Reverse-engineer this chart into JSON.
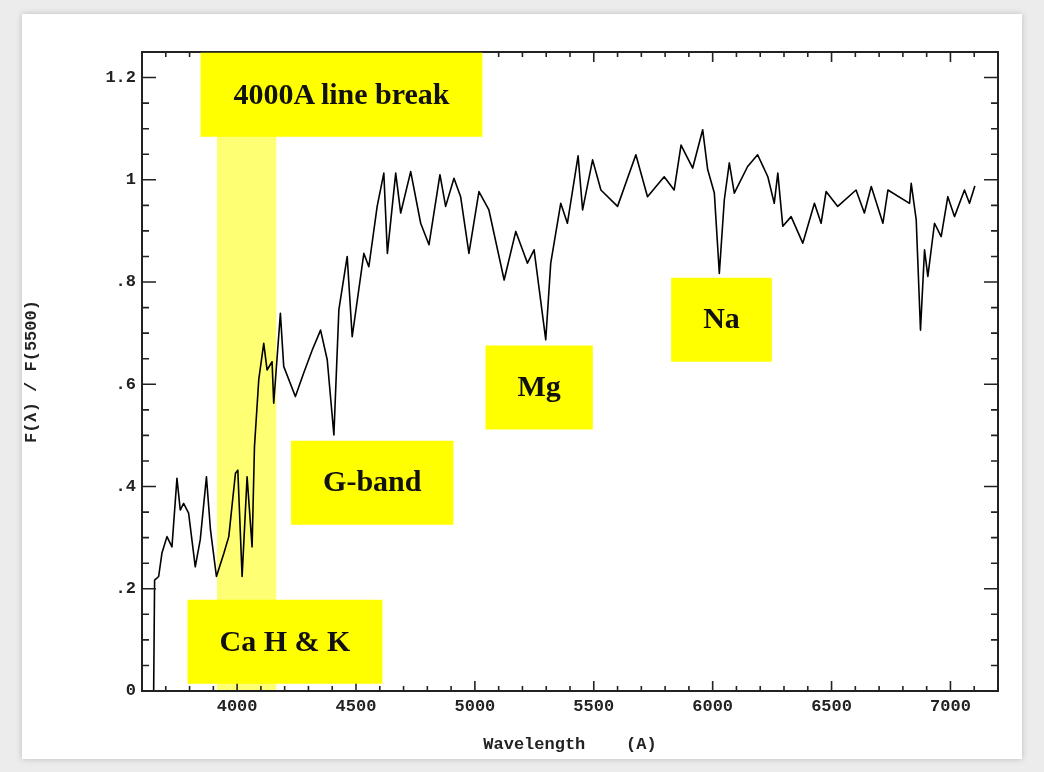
{
  "chart_data": {
    "type": "line",
    "xlabel": "Wavelength    (A)",
    "ylabel": "F(λ) / F(5500)",
    "color": "#000000",
    "legend": false,
    "grid": false,
    "marker": "none",
    "line_style": "solid",
    "xlim": [
      3600,
      7200
    ],
    "ylim": [
      0,
      1.25
    ],
    "xticks": [
      {
        "value": 3600,
        "label": null
      },
      {
        "value": 3700,
        "label": null
      },
      {
        "value": 3800,
        "label": null
      },
      {
        "value": 3900,
        "label": null
      },
      4000,
      {
        "value": 4100,
        "label": null
      },
      {
        "value": 4200,
        "label": null
      },
      {
        "value": 4300,
        "label": null
      },
      {
        "value": 4400,
        "label": null
      },
      4500,
      {
        "value": 4600,
        "label": null
      },
      {
        "value": 4700,
        "label": null
      },
      {
        "value": 4800,
        "label": null
      },
      {
        "value": 4900,
        "label": null
      },
      5000,
      {
        "value": 5100,
        "label": null
      },
      {
        "value": 5200,
        "label": null
      },
      {
        "value": 5300,
        "label": null
      },
      {
        "value": 5400,
        "label": null
      },
      5500,
      {
        "value": 5600,
        "label": null
      },
      {
        "value": 5700,
        "label": null
      },
      {
        "value": 5800,
        "label": null
      },
      {
        "value": 5900,
        "label": null
      },
      6000,
      {
        "value": 6100,
        "label": null
      },
      {
        "value": 6200,
        "label": null
      },
      {
        "value": 6300,
        "label": null
      },
      {
        "value": 6400,
        "label": null
      },
      6500,
      {
        "value": 6600,
        "label": null
      },
      {
        "value": 6700,
        "label": null
      },
      {
        "value": 6800,
        "label": null
      },
      {
        "value": 6900,
        "label": null
      },
      7000,
      {
        "value": 7100,
        "label": null
      }
    ],
    "yticks": [
      0,
      {
        "value": 0.05,
        "label": null
      },
      {
        "value": 0.1,
        "label": null
      },
      {
        "value": 0.15,
        "label": null
      },
      {
        "value": 0.2,
        "label": ".2"
      },
      {
        "value": 0.25,
        "label": null
      },
      {
        "value": 0.3,
        "label": null
      },
      {
        "value": 0.35,
        "label": null
      },
      {
        "value": 0.4,
        "label": ".4"
      },
      {
        "value": 0.45,
        "label": null
      },
      {
        "value": 0.5,
        "label": null
      },
      {
        "value": 0.55,
        "label": null
      },
      {
        "value": 0.6,
        "label": ".6"
      },
      {
        "value": 0.65,
        "label": null
      },
      {
        "value": 0.7,
        "label": null
      },
      {
        "value": 0.75,
        "label": null
      },
      {
        "value": 0.8,
        "label": ".8"
      },
      {
        "value": 0.85,
        "label": null
      },
      {
        "value": 0.9,
        "label": null
      },
      {
        "value": 0.95,
        "label": null
      },
      1,
      {
        "value": 1.05,
        "label": null
      },
      {
        "value": 1.1,
        "label": null
      },
      {
        "value": 1.15,
        "label": null
      },
      1.2
    ],
    "x": [
      3649,
      3653,
      3670,
      3684,
      3705,
      3726,
      3747,
      3761,
      3775,
      3796,
      3824,
      3845,
      3871,
      3888,
      3913,
      3944,
      3965,
      3993,
      4003,
      4021,
      4042,
      4063,
      4073,
      4091,
      4112,
      4126,
      4147,
      4154,
      4182,
      4196,
      4245,
      4280,
      4316,
      4351,
      4379,
      4407,
      4428,
      4463,
      4484,
      4533,
      4554,
      4589,
      4617,
      4632,
      4667,
      4688,
      4730,
      4772,
      4807,
      4853,
      4877,
      4912,
      4940,
      4975,
      5017,
      5059,
      5123,
      5172,
      5221,
      5249,
      5298,
      5319,
      5361,
      5389,
      5434,
      5453,
      5495,
      5530,
      5600,
      5677,
      5726,
      5796,
      5838,
      5867,
      5916,
      5958,
      5979,
      6007,
      6028,
      6049,
      6070,
      6091,
      6147,
      6189,
      6232,
      6259,
      6274,
      6295,
      6330,
      6379,
      6428,
      6456,
      6477,
      6526,
      6603,
      6638,
      6667,
      6716,
      6737,
      6828,
      6835,
      6856,
      6874,
      6891,
      6905,
      6933,
      6961,
      6989,
      7017,
      7059,
      7080,
      7102
    ],
    "values": [
      0.0,
      0.217,
      0.224,
      0.27,
      0.302,
      0.282,
      0.416,
      0.354,
      0.367,
      0.348,
      0.243,
      0.296,
      0.419,
      0.315,
      0.224,
      0.269,
      0.302,
      0.426,
      0.432,
      0.224,
      0.419,
      0.282,
      0.478,
      0.609,
      0.68,
      0.628,
      0.644,
      0.563,
      0.739,
      0.635,
      0.576,
      0.622,
      0.667,
      0.706,
      0.648,
      0.501,
      0.746,
      0.85,
      0.693,
      0.856,
      0.83,
      0.948,
      1.013,
      0.856,
      1.013,
      0.935,
      1.016,
      0.915,
      0.873,
      1.01,
      0.948,
      1.003,
      0.967,
      0.856,
      0.977,
      0.941,
      0.804,
      0.899,
      0.837,
      0.863,
      0.687,
      0.837,
      0.954,
      0.915,
      1.047,
      0.941,
      1.039,
      0.98,
      0.948,
      1.049,
      0.967,
      1.006,
      0.98,
      1.068,
      1.023,
      1.098,
      1.02,
      0.974,
      0.817,
      0.961,
      1.033,
      0.974,
      1.026,
      1.049,
      1.006,
      0.954,
      1.013,
      0.909,
      0.928,
      0.876,
      0.954,
      0.915,
      0.977,
      0.948,
      0.98,
      0.935,
      0.987,
      0.915,
      0.98,
      0.954,
      0.993,
      0.922,
      0.706,
      0.863,
      0.811,
      0.915,
      0.889,
      0.967,
      0.928,
      0.98,
      0.954,
      0.987
    ],
    "bands": [
      {
        "axis": "x",
        "from": 3915,
        "to": 4165,
        "color": "#ffff00"
      }
    ],
    "annotations": [
      "4000A line break",
      "Ca H & K",
      "G-band",
      "Mg",
      "Na"
    ]
  }
}
